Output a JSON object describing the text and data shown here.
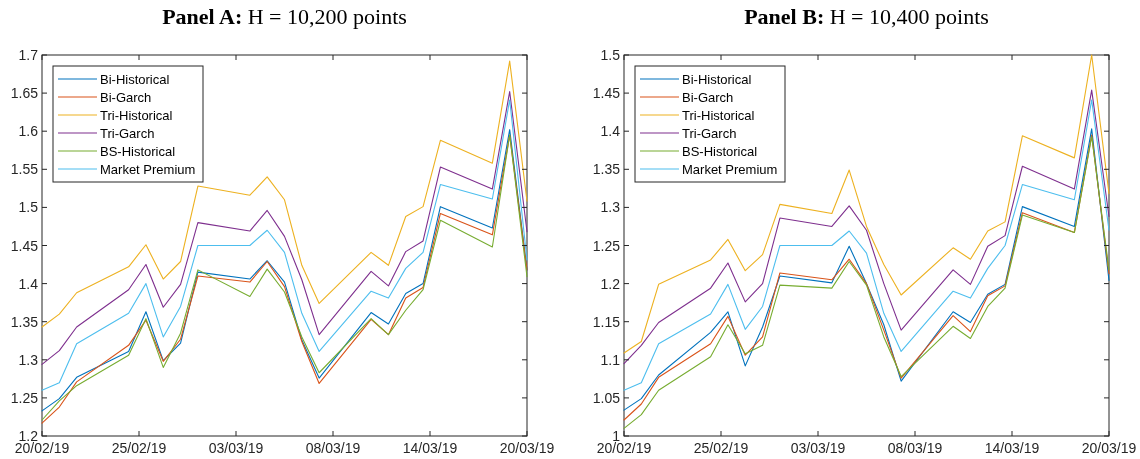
{
  "chart_data": [
    {
      "type": "line",
      "title": "Panel A: H = 10,200 points",
      "x": [
        "--02-20",
        "--02-21",
        "--02-22",
        "--02-25",
        "--02-26",
        "--02-27",
        "--02-28",
        "--03-01",
        "--03-04",
        "--03-05",
        "--03-06",
        "--03-07",
        "--03-08",
        "--03-11",
        "--03-12",
        "--03-13",
        "--03-14",
        "--03-15",
        "--03-18",
        "--03-19",
        "--03-20"
      ],
      "xlim": [
        "--02-20",
        "--03-20"
      ],
      "xticks": [
        {
          "value": "--02-20",
          "label": "20/02/19"
        },
        {
          "value": "--02-25T14:24",
          "label": "25/02/19"
        },
        {
          "value": "--03-03T04:48",
          "label": "03/03/19"
        },
        {
          "value": "--03-08T19:12",
          "label": "08/03/19"
        },
        {
          "value": "--03-14T09:36",
          "label": "14/03/19"
        },
        {
          "value": "--03-20",
          "label": "20/03/19"
        }
      ],
      "ylim": [
        1.2,
        1.7
      ],
      "yticks": [
        1.2,
        1.25,
        1.3,
        1.35,
        1.4,
        1.45,
        1.5,
        1.55,
        1.6,
        1.65,
        1.7
      ],
      "grid": false,
      "legend": "top left",
      "marker": "none",
      "line_style": "solid",
      "series": [
        {
          "name": "Bi-Historical",
          "color": "#0072bd",
          "values": [
            1.233,
            1.249,
            1.277,
            1.311,
            1.363,
            1.299,
            1.322,
            1.415,
            1.406,
            1.43,
            1.402,
            1.326,
            1.276,
            1.362,
            1.347,
            1.387,
            1.4,
            1.501,
            1.473,
            1.602,
            1.418
          ]
        },
        {
          "name": "Bi-Garch",
          "color": "#d95319",
          "values": [
            1.217,
            1.238,
            1.271,
            1.319,
            1.352,
            1.298,
            1.327,
            1.41,
            1.402,
            1.429,
            1.396,
            1.324,
            1.269,
            1.353,
            1.333,
            1.381,
            1.395,
            1.492,
            1.464,
            1.595,
            1.418
          ]
        },
        {
          "name": "Tri-Historical",
          "color": "#edb120",
          "values": [
            1.343,
            1.36,
            1.388,
            1.422,
            1.451,
            1.406,
            1.429,
            1.528,
            1.516,
            1.54,
            1.51,
            1.424,
            1.374,
            1.441,
            1.424,
            1.488,
            1.501,
            1.588,
            1.558,
            1.692,
            1.508
          ]
        },
        {
          "name": "Tri-Garch",
          "color": "#7e2f8e",
          "values": [
            1.294,
            1.312,
            1.343,
            1.392,
            1.425,
            1.369,
            1.399,
            1.48,
            1.469,
            1.496,
            1.462,
            1.405,
            1.333,
            1.416,
            1.397,
            1.442,
            1.456,
            1.553,
            1.524,
            1.652,
            1.468
          ]
        },
        {
          "name": "BS-Historical",
          "color": "#77ac30",
          "values": [
            1.221,
            1.246,
            1.266,
            1.306,
            1.354,
            1.29,
            1.335,
            1.418,
            1.383,
            1.419,
            1.389,
            1.33,
            1.283,
            1.354,
            1.333,
            1.365,
            1.392,
            1.483,
            1.448,
            1.595,
            1.409
          ]
        },
        {
          "name": "Market Premium",
          "color": "#4dbeee",
          "values": [
            1.26,
            1.27,
            1.321,
            1.361,
            1.4,
            1.33,
            1.37,
            1.45,
            1.45,
            1.47,
            1.441,
            1.361,
            1.311,
            1.39,
            1.381,
            1.42,
            1.441,
            1.53,
            1.511,
            1.641,
            1.431
          ]
        }
      ]
    },
    {
      "type": "line",
      "title": "Panel B: H = 10,400 points",
      "x": [
        "--02-20",
        "--02-21",
        "--02-22",
        "--02-25",
        "--02-26",
        "--02-27",
        "--02-28",
        "--03-01",
        "--03-04",
        "--03-05",
        "--03-06",
        "--03-07",
        "--03-08",
        "--03-11",
        "--03-12",
        "--03-13",
        "--03-14",
        "--03-15",
        "--03-18",
        "--03-19",
        "--03-20"
      ],
      "xlim": [
        "--02-20",
        "--03-20"
      ],
      "xticks": [
        {
          "value": "--02-20",
          "label": "20/02/19"
        },
        {
          "value": "--02-25T14:24",
          "label": "25/02/19"
        },
        {
          "value": "--03-03T04:48",
          "label": "03/03/19"
        },
        {
          "value": "--03-08T19:12",
          "label": "08/03/19"
        },
        {
          "value": "--03-14T09:36",
          "label": "14/03/19"
        },
        {
          "value": "--03-20",
          "label": "20/03/19"
        }
      ],
      "ylim": [
        1,
        1.5
      ],
      "yticks": [
        1,
        1.05,
        1.1,
        1.15,
        1.2,
        1.25,
        1.3,
        1.35,
        1.4,
        1.45,
        1.5
      ],
      "grid": false,
      "legend": "top left",
      "marker": "none",
      "line_style": "solid",
      "series": [
        {
          "name": "Bi-Historical",
          "color": "#0072bd",
          "values": [
            1.034,
            1.049,
            1.08,
            1.136,
            1.163,
            1.092,
            1.143,
            1.21,
            1.201,
            1.249,
            1.2,
            1.146,
            1.072,
            1.163,
            1.149,
            1.186,
            1.199,
            1.301,
            1.275,
            1.403,
            1.204
          ]
        },
        {
          "name": "Bi-Garch",
          "color": "#d95319",
          "values": [
            1.021,
            1.042,
            1.077,
            1.121,
            1.157,
            1.106,
            1.13,
            1.214,
            1.205,
            1.232,
            1.2,
            1.139,
            1.076,
            1.158,
            1.137,
            1.184,
            1.197,
            1.293,
            1.267,
            1.395,
            1.213
          ]
        },
        {
          "name": "Tri-Historical",
          "color": "#edb120",
          "values": [
            1.109,
            1.124,
            1.199,
            1.231,
            1.258,
            1.217,
            1.238,
            1.304,
            1.292,
            1.349,
            1.275,
            1.225,
            1.185,
            1.247,
            1.232,
            1.269,
            1.281,
            1.394,
            1.365,
            1.5,
            1.318
          ]
        },
        {
          "name": "Tri-Garch",
          "color": "#7e2f8e",
          "values": [
            1.095,
            1.119,
            1.149,
            1.194,
            1.227,
            1.176,
            1.2,
            1.286,
            1.275,
            1.302,
            1.27,
            1.2,
            1.139,
            1.218,
            1.199,
            1.249,
            1.263,
            1.354,
            1.324,
            1.454,
            1.288
          ]
        },
        {
          "name": "BS-Historical",
          "color": "#77ac30",
          "values": [
            1.01,
            1.028,
            1.06,
            1.104,
            1.146,
            1.108,
            1.119,
            1.198,
            1.194,
            1.229,
            1.198,
            1.13,
            1.078,
            1.144,
            1.128,
            1.17,
            1.194,
            1.29,
            1.267,
            1.393,
            1.218
          ]
        },
        {
          "name": "Market Premium",
          "color": "#4dbeee",
          "values": [
            1.06,
            1.07,
            1.121,
            1.16,
            1.199,
            1.14,
            1.17,
            1.25,
            1.25,
            1.269,
            1.24,
            1.161,
            1.111,
            1.19,
            1.181,
            1.22,
            1.25,
            1.33,
            1.31,
            1.441,
            1.27
          ]
        }
      ]
    }
  ]
}
